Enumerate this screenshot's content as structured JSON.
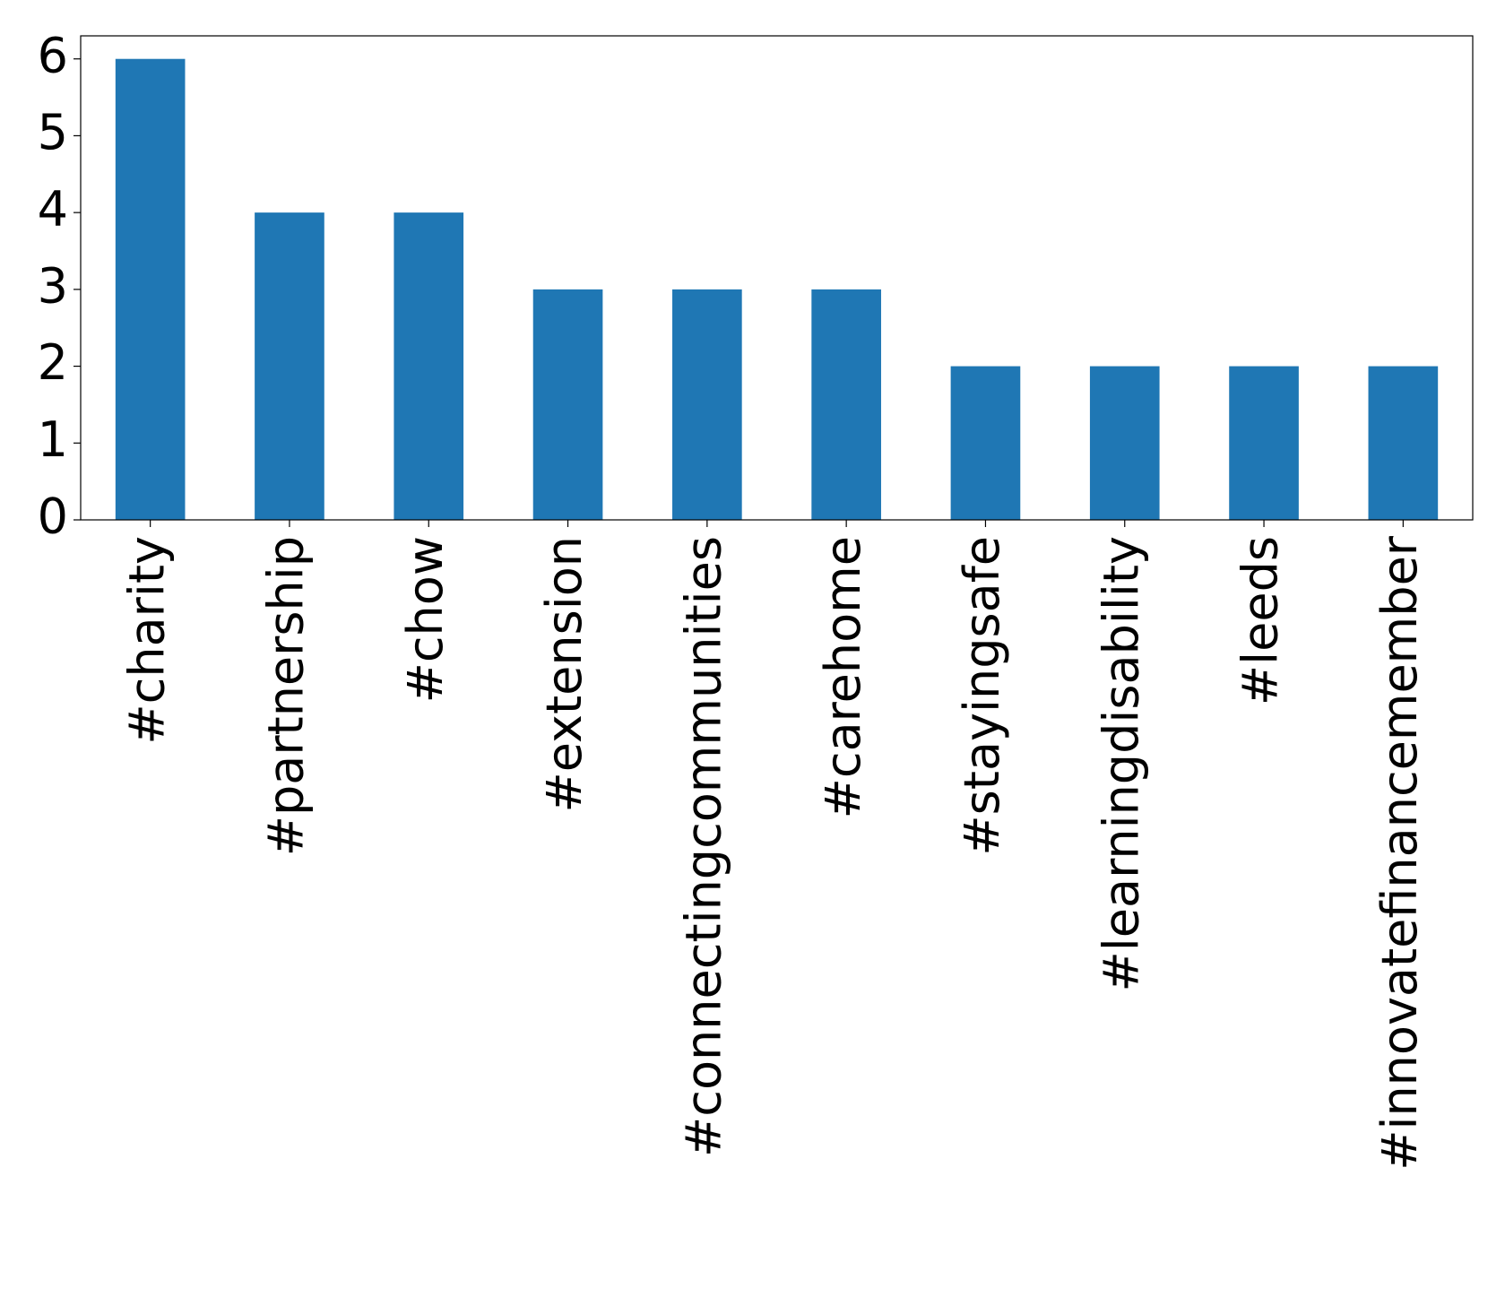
{
  "chart_data": {
    "type": "bar",
    "categories": [
      "#charity",
      "#partnership",
      "#chow",
      "#extension",
      "#connectingcommunities",
      "#carehome",
      "#stayingsafe",
      "#learningdisability",
      "#leeds",
      "#innovatefinancemember"
    ],
    "values": [
      6,
      4,
      4,
      3,
      3,
      3,
      2,
      2,
      2,
      2
    ],
    "color": "#1f77b4",
    "ylim": [
      0,
      6.3
    ],
    "yticks": [
      0,
      1,
      2,
      3,
      4,
      5,
      6
    ],
    "grid": false
  }
}
